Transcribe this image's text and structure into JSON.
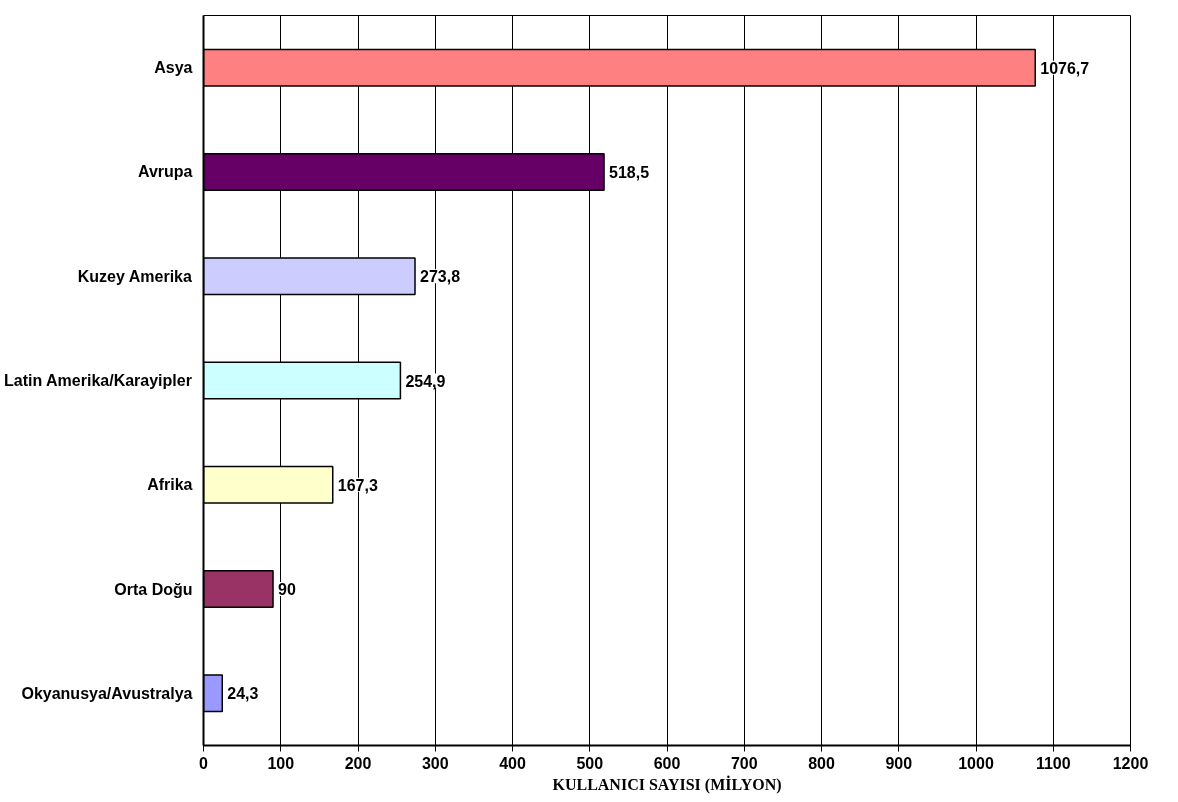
{
  "chart_data": {
    "type": "bar",
    "orientation": "horizontal",
    "xlabel": "KULLANICI SAYISI (MİLYON)",
    "categories": [
      "Asya",
      "Avrupa",
      "Kuzey Amerika",
      "Latin Amerika/Karayipler",
      "Afrika",
      "Orta Doğu",
      "Okyanusya/Avustralya"
    ],
    "values": [
      1076.7,
      518.5,
      273.8,
      254.9,
      167.3,
      90,
      24.3
    ],
    "value_labels": [
      "1076,7",
      "518,5",
      "273,8",
      "254,9",
      "167,3",
      "90",
      "24,3"
    ],
    "colors": [
      "#ff8080",
      "#660066",
      "#ccccff",
      "#ccffff",
      "#ffffcc",
      "#993366",
      "#9999ff"
    ],
    "xlim": [
      0,
      1200
    ],
    "xticks": [
      0,
      100,
      200,
      300,
      400,
      500,
      600,
      700,
      800,
      900,
      1000,
      1100,
      1200
    ],
    "grid": "x"
  }
}
